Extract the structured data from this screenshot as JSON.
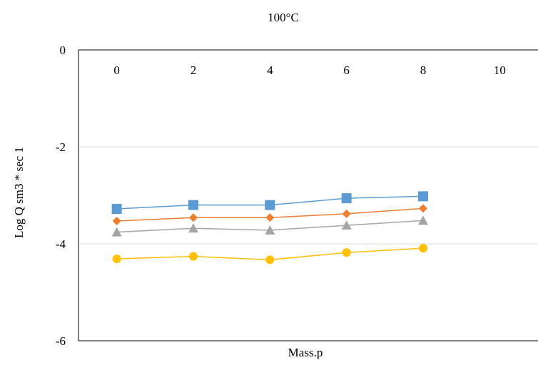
{
  "chart_data": {
    "type": "line",
    "title": "100°C",
    "xlabel": "Mass.p",
    "ylabel": "Log Q sm3 * sec 1",
    "xlim": [
      -1,
      11
    ],
    "ylim": [
      -6,
      0
    ],
    "x_ticks": [
      "0",
      "2",
      "4",
      "6",
      "8",
      "10"
    ],
    "x_tick_values": [
      0,
      2,
      4,
      6,
      8,
      10
    ],
    "y_ticks": [
      "0",
      "-2",
      "-4",
      "-6"
    ],
    "y_tick_values": [
      0,
      -2,
      -4,
      -6
    ],
    "x_axis_position": "top",
    "grid": "horizontal",
    "legend": "none",
    "series": [
      {
        "color": "#5b9bd5",
        "marker": "square",
        "x": [
          0,
          2,
          4,
          6,
          8
        ],
        "y": [
          -3.28,
          -3.2,
          -3.2,
          -3.06,
          -3.02
        ]
      },
      {
        "color": "#ed7d31",
        "marker": "diamond",
        "x": [
          0,
          2,
          4,
          6,
          8
        ],
        "y": [
          -3.53,
          -3.46,
          -3.46,
          -3.38,
          -3.27
        ]
      },
      {
        "color": "#a5a5a5",
        "marker": "triangle",
        "x": [
          0,
          2,
          4,
          6,
          8
        ],
        "y": [
          -3.76,
          -3.68,
          -3.72,
          -3.62,
          -3.52
        ]
      },
      {
        "color": "#ffc000",
        "marker": "circle",
        "x": [
          0,
          2,
          4,
          6,
          8
        ],
        "y": [
          -4.31,
          -4.26,
          -4.33,
          -4.18,
          -4.09
        ]
      }
    ]
  }
}
